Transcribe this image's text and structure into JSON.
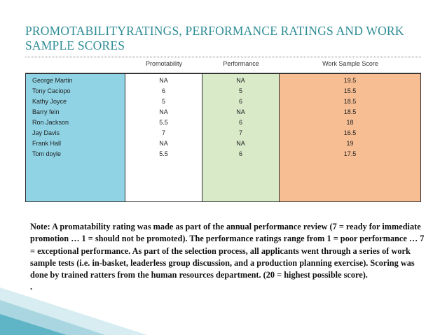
{
  "slide": {
    "title": "PROMOTABILITYRATINGS, PERFORMANCE RATINGS AND WORK SAMPLE SCORES"
  },
  "table": {
    "headers": [
      "Promotability",
      "Performance",
      "Work Sample Score"
    ],
    "names": [
      "George Martin",
      "Tony Caciopo",
      "Kathy Joyce",
      "Barry fein",
      "Ron Jackson",
      "Jay Davis",
      "Frank Hall",
      "Tom doyle"
    ],
    "promotability": [
      "NA",
      "6",
      "5",
      "NA",
      "5.5",
      "7",
      "NA",
      "5.5"
    ],
    "performance": [
      "NA",
      "5",
      "6",
      "NA",
      "6",
      "7",
      "NA",
      "6"
    ],
    "work_sample": [
      "19.5",
      "15.5",
      "18.5",
      "18.5",
      "18",
      "16.5",
      "19",
      "17.5"
    ]
  },
  "note": {
    "text": "Note:  A promatability rating was made as part of the annual performance review (7 = ready for immediate promotion … 1 = should not be promoted).  The performance ratings range from 1 = poor performance … 7 = exceptional performance. As part of the selection process, all applicants went through a series of work sample tests (i.e. in-basket, leaderless group discussion, and a production planning exercise).  Scoring was done by trained ratters from the human resources department.  (20 = highest possible score).",
    "trailing": "."
  },
  "colors": {
    "title": "#2e8c96",
    "names_col": "#8fd3e4",
    "performance_col": "#d9eac9",
    "work_sample_col": "#f7be93"
  }
}
